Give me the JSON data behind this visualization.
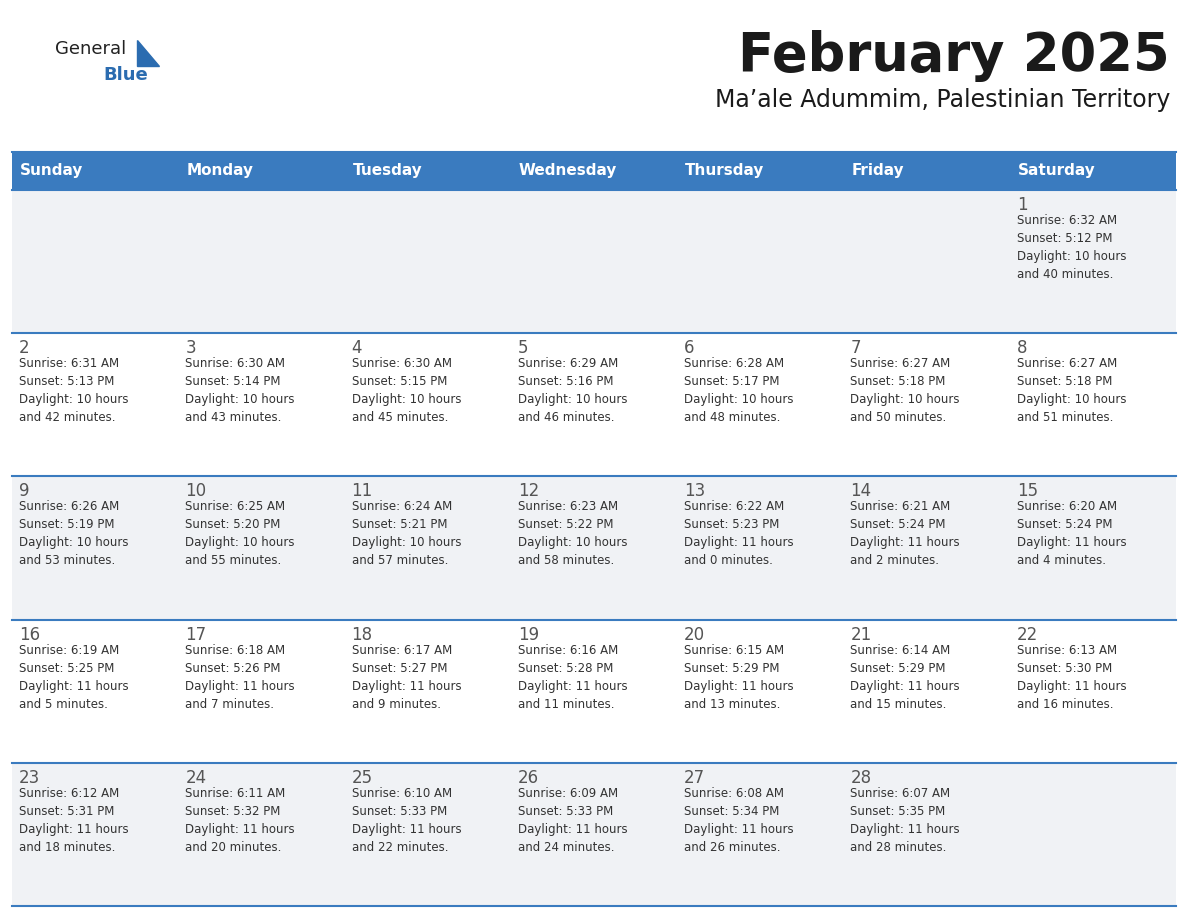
{
  "title": "February 2025",
  "subtitle": "Ma’ale Adummim, Palestinian Territory",
  "header_bg_color": "#3a7bbf",
  "header_text_color": "#ffffff",
  "cell_bg_color": "#ffffff",
  "cell_alt_bg_color": "#f0f2f5",
  "border_color": "#3a7bbf",
  "title_color": "#1a1a1a",
  "subtitle_color": "#1a1a1a",
  "day_number_color": "#555555",
  "cell_text_color": "#333333",
  "days_of_week": [
    "Sunday",
    "Monday",
    "Tuesday",
    "Wednesday",
    "Thursday",
    "Friday",
    "Saturday"
  ],
  "weeks": [
    [
      {
        "day": null,
        "info": null
      },
      {
        "day": null,
        "info": null
      },
      {
        "day": null,
        "info": null
      },
      {
        "day": null,
        "info": null
      },
      {
        "day": null,
        "info": null
      },
      {
        "day": null,
        "info": null
      },
      {
        "day": 1,
        "info": "Sunrise: 6:32 AM\nSunset: 5:12 PM\nDaylight: 10 hours\nand 40 minutes."
      }
    ],
    [
      {
        "day": 2,
        "info": "Sunrise: 6:31 AM\nSunset: 5:13 PM\nDaylight: 10 hours\nand 42 minutes."
      },
      {
        "day": 3,
        "info": "Sunrise: 6:30 AM\nSunset: 5:14 PM\nDaylight: 10 hours\nand 43 minutes."
      },
      {
        "day": 4,
        "info": "Sunrise: 6:30 AM\nSunset: 5:15 PM\nDaylight: 10 hours\nand 45 minutes."
      },
      {
        "day": 5,
        "info": "Sunrise: 6:29 AM\nSunset: 5:16 PM\nDaylight: 10 hours\nand 46 minutes."
      },
      {
        "day": 6,
        "info": "Sunrise: 6:28 AM\nSunset: 5:17 PM\nDaylight: 10 hours\nand 48 minutes."
      },
      {
        "day": 7,
        "info": "Sunrise: 6:27 AM\nSunset: 5:18 PM\nDaylight: 10 hours\nand 50 minutes."
      },
      {
        "day": 8,
        "info": "Sunrise: 6:27 AM\nSunset: 5:18 PM\nDaylight: 10 hours\nand 51 minutes."
      }
    ],
    [
      {
        "day": 9,
        "info": "Sunrise: 6:26 AM\nSunset: 5:19 PM\nDaylight: 10 hours\nand 53 minutes."
      },
      {
        "day": 10,
        "info": "Sunrise: 6:25 AM\nSunset: 5:20 PM\nDaylight: 10 hours\nand 55 minutes."
      },
      {
        "day": 11,
        "info": "Sunrise: 6:24 AM\nSunset: 5:21 PM\nDaylight: 10 hours\nand 57 minutes."
      },
      {
        "day": 12,
        "info": "Sunrise: 6:23 AM\nSunset: 5:22 PM\nDaylight: 10 hours\nand 58 minutes."
      },
      {
        "day": 13,
        "info": "Sunrise: 6:22 AM\nSunset: 5:23 PM\nDaylight: 11 hours\nand 0 minutes."
      },
      {
        "day": 14,
        "info": "Sunrise: 6:21 AM\nSunset: 5:24 PM\nDaylight: 11 hours\nand 2 minutes."
      },
      {
        "day": 15,
        "info": "Sunrise: 6:20 AM\nSunset: 5:24 PM\nDaylight: 11 hours\nand 4 minutes."
      }
    ],
    [
      {
        "day": 16,
        "info": "Sunrise: 6:19 AM\nSunset: 5:25 PM\nDaylight: 11 hours\nand 5 minutes."
      },
      {
        "day": 17,
        "info": "Sunrise: 6:18 AM\nSunset: 5:26 PM\nDaylight: 11 hours\nand 7 minutes."
      },
      {
        "day": 18,
        "info": "Sunrise: 6:17 AM\nSunset: 5:27 PM\nDaylight: 11 hours\nand 9 minutes."
      },
      {
        "day": 19,
        "info": "Sunrise: 6:16 AM\nSunset: 5:28 PM\nDaylight: 11 hours\nand 11 minutes."
      },
      {
        "day": 20,
        "info": "Sunrise: 6:15 AM\nSunset: 5:29 PM\nDaylight: 11 hours\nand 13 minutes."
      },
      {
        "day": 21,
        "info": "Sunrise: 6:14 AM\nSunset: 5:29 PM\nDaylight: 11 hours\nand 15 minutes."
      },
      {
        "day": 22,
        "info": "Sunrise: 6:13 AM\nSunset: 5:30 PM\nDaylight: 11 hours\nand 16 minutes."
      }
    ],
    [
      {
        "day": 23,
        "info": "Sunrise: 6:12 AM\nSunset: 5:31 PM\nDaylight: 11 hours\nand 18 minutes."
      },
      {
        "day": 24,
        "info": "Sunrise: 6:11 AM\nSunset: 5:32 PM\nDaylight: 11 hours\nand 20 minutes."
      },
      {
        "day": 25,
        "info": "Sunrise: 6:10 AM\nSunset: 5:33 PM\nDaylight: 11 hours\nand 22 minutes."
      },
      {
        "day": 26,
        "info": "Sunrise: 6:09 AM\nSunset: 5:33 PM\nDaylight: 11 hours\nand 24 minutes."
      },
      {
        "day": 27,
        "info": "Sunrise: 6:08 AM\nSunset: 5:34 PM\nDaylight: 11 hours\nand 26 minutes."
      },
      {
        "day": 28,
        "info": "Sunrise: 6:07 AM\nSunset: 5:35 PM\nDaylight: 11 hours\nand 28 minutes."
      },
      {
        "day": null,
        "info": null
      }
    ]
  ],
  "logo_general_color": "#222222",
  "logo_blue_color": "#2b6cb0",
  "fig_width": 11.88,
  "fig_height": 9.18,
  "dpi": 100
}
